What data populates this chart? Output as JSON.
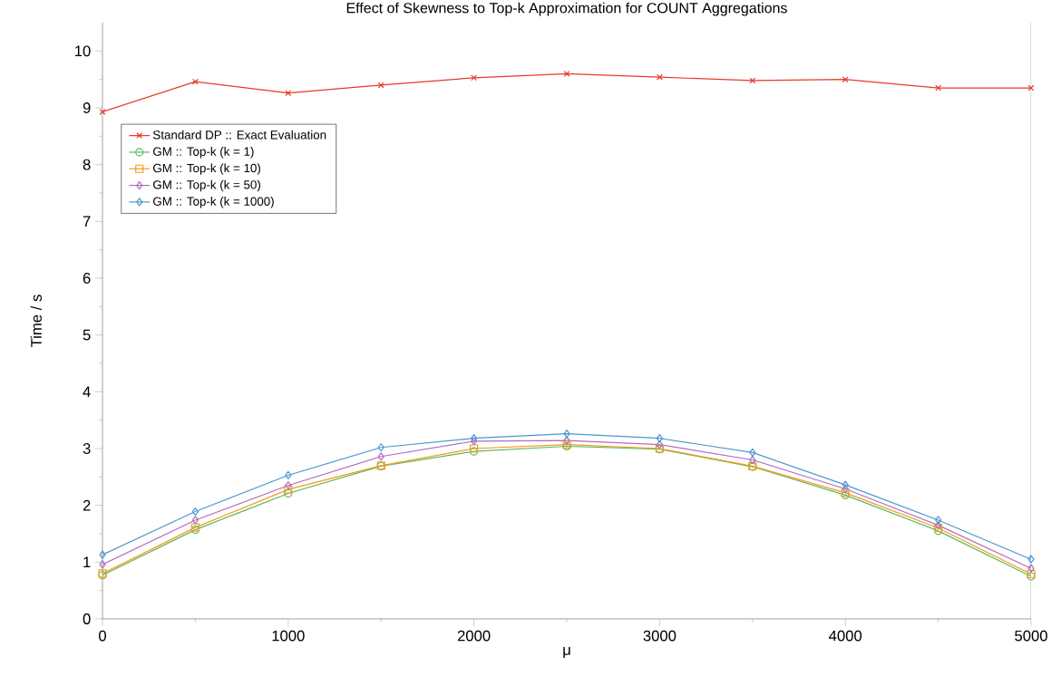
{
  "chart_data": {
    "type": "line",
    "title": "Effect of Skewness to Top-k Approximation for COUNT Aggregations",
    "xlabel": "μ",
    "ylabel": "Time / s",
    "x": [
      0,
      500,
      1000,
      1500,
      2000,
      2500,
      3000,
      3500,
      4000,
      4500,
      5000
    ],
    "series": [
      {
        "name": "Standard DP :: Exact Evaluation",
        "color": "#e8392a",
        "marker": "cross",
        "values": [
          8.93,
          9.46,
          9.26,
          9.4,
          9.53,
          9.6,
          9.54,
          9.48,
          9.5,
          9.35,
          9.35
        ]
      },
      {
        "name": "GM :: Top-k (k = 1)",
        "color": "#5cb85c",
        "marker": "circle",
        "values": [
          0.77,
          1.57,
          2.21,
          2.69,
          2.95,
          3.04,
          2.99,
          2.68,
          2.18,
          1.55,
          0.75
        ]
      },
      {
        "name": "GM :: Top-k (k = 10)",
        "color": "#f59a1b",
        "marker": "square",
        "values": [
          0.8,
          1.61,
          2.28,
          2.7,
          3.0,
          3.07,
          3.0,
          2.69,
          2.22,
          1.6,
          0.79
        ]
      },
      {
        "name": "GM :: Top-k (k = 50)",
        "color": "#b06cc4",
        "marker": "diamond",
        "values": [
          0.96,
          1.74,
          2.35,
          2.86,
          3.13,
          3.14,
          3.07,
          2.8,
          2.29,
          1.65,
          0.89
        ]
      },
      {
        "name": "GM :: Top-k (k = 1000)",
        "color": "#4a97d0",
        "marker": "diamond",
        "values": [
          1.13,
          1.89,
          2.53,
          3.02,
          3.18,
          3.26,
          3.18,
          2.93,
          2.36,
          1.74,
          1.05
        ]
      }
    ],
    "xlim": [
      0,
      5000
    ],
    "xticks": [
      0,
      1000,
      2000,
      3000,
      4000,
      5000
    ],
    "ylim": [
      0,
      10.5
    ],
    "yticks": [
      0,
      1,
      2,
      3,
      4,
      5,
      6,
      7,
      8,
      9,
      10
    ],
    "grid": false,
    "legend": "top left",
    "line_style": "solid"
  }
}
